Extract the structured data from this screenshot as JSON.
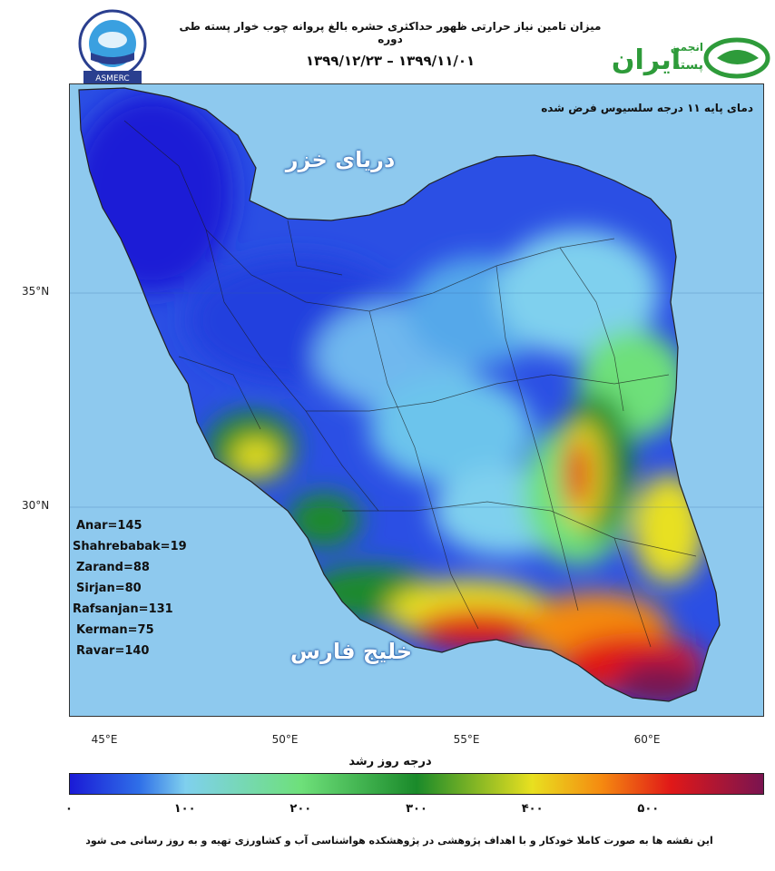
{
  "header": {
    "title": "میزان تامین نیاز حرارتی ظهور حداکثری حشره بالغ پروانه چوب خوار پسته طی دوره",
    "dates": "۱۳۹۹/۱۲/۲۳ – ۱۳۹۹/۱۱/۰۱"
  },
  "logos": {
    "left_text": "ASMERC",
    "right_main": "ایران",
    "right_top": "انجمن",
    "right_sub": "پسته",
    "right_color": "#2e9b3a"
  },
  "map": {
    "base_temp_note": "دمای پایه ۱۱ درجه سلسیوس فرض شده",
    "caspian_label": "دریای خزر",
    "gulf_label": "خلیج فارس",
    "lat_labels": [
      "35°N",
      "30°N"
    ],
    "lon_labels": [
      "45°E",
      "50°E",
      "55°E",
      "60°E"
    ],
    "sea_color": "#8ec9ee"
  },
  "stations": [
    {
      "label": "Anar=145"
    },
    {
      "label": "Shahrebabak=19"
    },
    {
      "label": "Zarand=88"
    },
    {
      "label": "Sirjan=80"
    },
    {
      "label": "Rafsanjan=131"
    },
    {
      "label": "Kerman=75"
    },
    {
      "label": "Ravar=140"
    }
  ],
  "colorbar": {
    "title": "درجه روز رشد",
    "ticks": [
      "۰",
      "۱۰۰",
      "۲۰۰",
      "۳۰۰",
      "۴۰۰",
      "۵۰۰"
    ],
    "tick_values": [
      0,
      100,
      200,
      300,
      400,
      500
    ],
    "max": 600,
    "stops": [
      {
        "v": 0,
        "c": "#1a1ad6"
      },
      {
        "v": 60,
        "c": "#2f6fe8"
      },
      {
        "v": 100,
        "c": "#7fd0ee"
      },
      {
        "v": 200,
        "c": "#6ee07a"
      },
      {
        "v": 300,
        "c": "#1a8a2a"
      },
      {
        "v": 400,
        "c": "#e8e020"
      },
      {
        "v": 460,
        "c": "#f58a10"
      },
      {
        "v": 520,
        "c": "#e01818"
      },
      {
        "v": 600,
        "c": "#7a1450"
      }
    ]
  },
  "footer": {
    "note": "این نقشه ها به صورت کاملا خودکار و با اهداف پژوهشی در پژوهشکده هواشناسی آب و کشاورزی تهیه و به روز رسانی می شود"
  }
}
